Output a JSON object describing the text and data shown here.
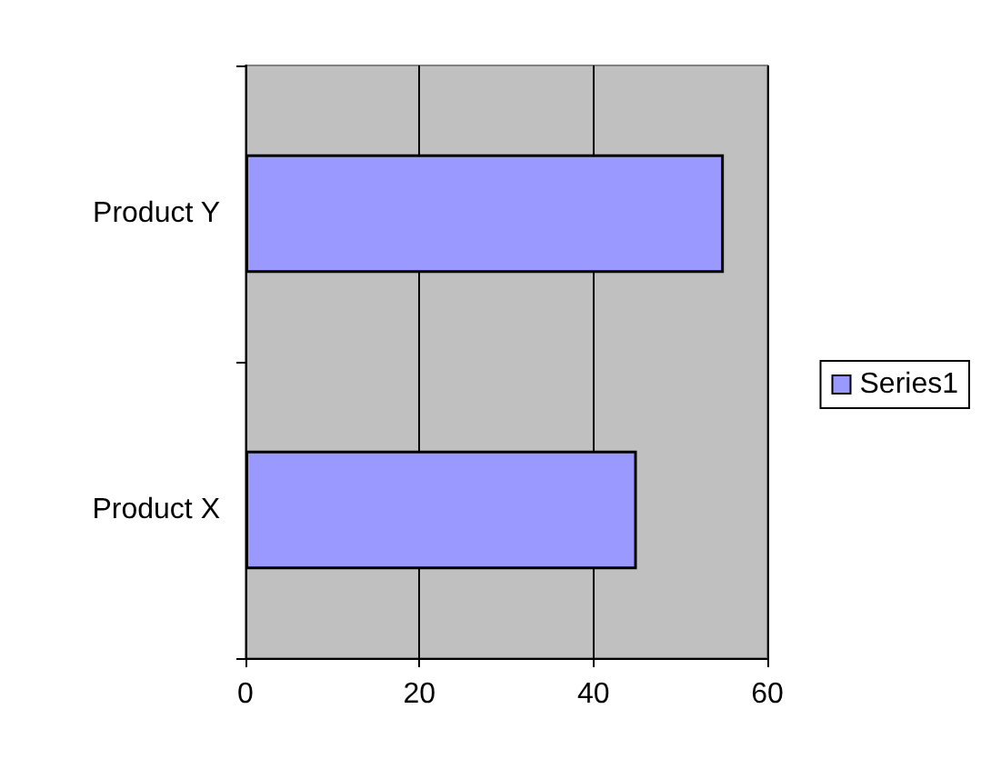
{
  "chart_data": {
    "type": "bar",
    "orientation": "horizontal",
    "categories": [
      "Product Y",
      "Product X"
    ],
    "series": [
      {
        "name": "Series1",
        "color": "#9999ff",
        "values": [
          55,
          45
        ]
      }
    ],
    "xlim": [
      0,
      60
    ],
    "xticks": [
      0,
      20,
      40,
      60
    ],
    "grid": "x",
    "legend": "right"
  }
}
